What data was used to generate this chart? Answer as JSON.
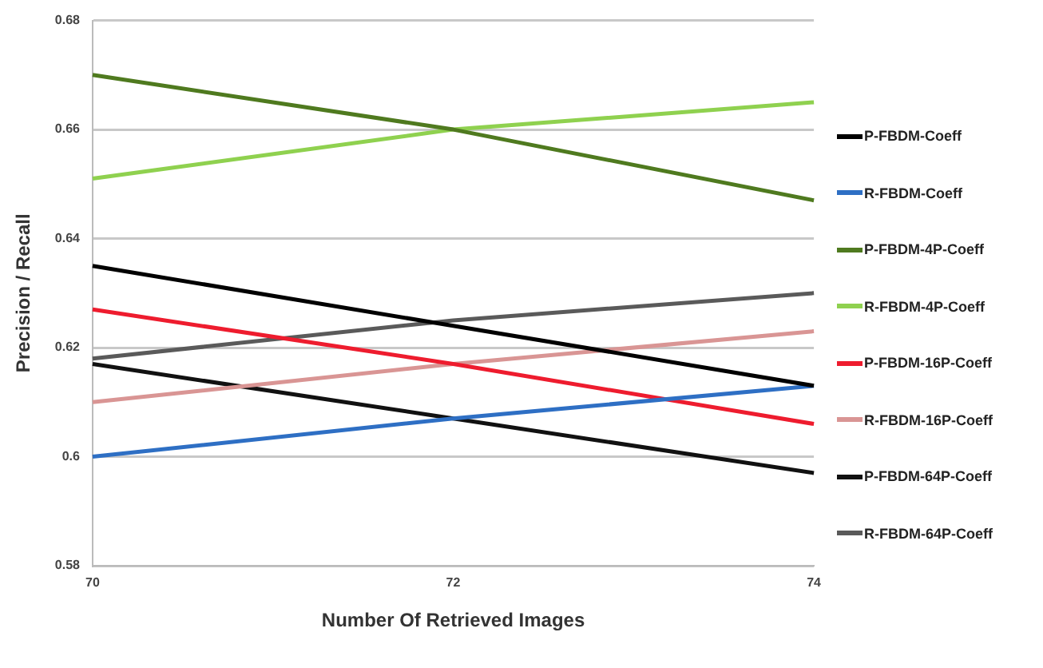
{
  "chart_data": {
    "type": "line",
    "xlabel": "Number Of Retrieved Images",
    "ylabel": "Precision / Recall",
    "categories": [
      "70",
      "72",
      "74"
    ],
    "ylim": [
      0.58,
      0.68
    ],
    "yticks": [
      {
        "value": 0.58,
        "label": "0.58"
      },
      {
        "value": 0.6,
        "label": "0.6"
      },
      {
        "value": 0.62,
        "label": "0.62"
      },
      {
        "value": 0.64,
        "label": "0.64"
      },
      {
        "value": 0.66,
        "label": "0.66"
      },
      {
        "value": 0.68,
        "label": "0.68"
      }
    ],
    "grid": "y",
    "legend": "right",
    "marker": "none",
    "series": [
      {
        "name": "P-FBDM-Coeff",
        "color": "#000000",
        "values": [
          0.635,
          0.624,
          0.613
        ]
      },
      {
        "name": "R-FBDM-Coeff",
        "color": "#2e6fc4",
        "values": [
          0.6,
          0.607,
          0.613
        ]
      },
      {
        "name": "P-FBDM-4P-Coeff",
        "color": "#4f7a1f",
        "values": [
          0.67,
          0.66,
          0.647
        ]
      },
      {
        "name": "R-FBDM-4P-Coeff",
        "color": "#8fd14f",
        "values": [
          0.651,
          0.66,
          0.665
        ]
      },
      {
        "name": "P-FBDM-16P-Coeff",
        "color": "#ee1c2e",
        "values": [
          0.627,
          0.617,
          0.606
        ]
      },
      {
        "name": "R-FBDM-16P-Coeff",
        "color": "#d99594",
        "values": [
          0.61,
          0.617,
          0.623
        ]
      },
      {
        "name": "P-FBDM-64P-Coeff",
        "color": "#111111",
        "values": [
          0.617,
          0.607,
          0.597
        ]
      },
      {
        "name": "R-FBDM-64P-Coeff",
        "color": "#5a5a5a",
        "values": [
          0.618,
          0.625,
          0.63
        ]
      }
    ]
  }
}
